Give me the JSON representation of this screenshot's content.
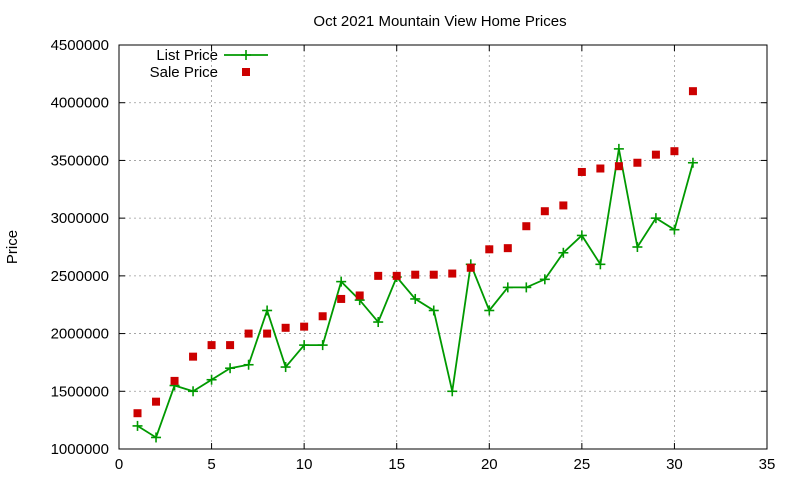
{
  "chart_data": {
    "type": "line",
    "title": "Oct 2021 Mountain View Home Prices",
    "ylabel": "Price",
    "xlabel": "",
    "xlim": [
      0,
      35
    ],
    "ylim": [
      1000000,
      4500000
    ],
    "x_ticks": [
      0,
      5,
      10,
      15,
      20,
      25,
      30,
      35
    ],
    "y_ticks": [
      1000000,
      1500000,
      2000000,
      2500000,
      3000000,
      3500000,
      4000000,
      4500000
    ],
    "grid": true,
    "legend_position": "top-left",
    "x": [
      1,
      2,
      3,
      4,
      5,
      6,
      7,
      8,
      9,
      10,
      11,
      12,
      13,
      14,
      15,
      16,
      17,
      18,
      19,
      20,
      21,
      22,
      23,
      24,
      25,
      26,
      27,
      28,
      29,
      30,
      31
    ],
    "series": [
      {
        "name": "List Price",
        "style": "linespoints",
        "color": "#009900",
        "values": [
          1200000,
          1100000,
          1550000,
          1500000,
          1600000,
          1700000,
          1730000,
          2200000,
          1710000,
          1900000,
          1900000,
          2450000,
          2290000,
          2100000,
          2490000,
          2300000,
          2200000,
          1500000,
          2600000,
          2200000,
          2400000,
          2400000,
          2470000,
          2700000,
          2850000,
          2600000,
          3600000,
          2750000,
          3000000,
          2900000,
          3480000
        ]
      },
      {
        "name": "Sale Price",
        "style": "points",
        "color": "#cc0000",
        "values": [
          1310000,
          1410000,
          1590000,
          1800000,
          1900000,
          1900000,
          2000000,
          2000000,
          2050000,
          2060000,
          2150000,
          2300000,
          2330000,
          2500000,
          2500000,
          2510000,
          2510000,
          2520000,
          2570000,
          2730000,
          2740000,
          2930000,
          3060000,
          3110000,
          3400000,
          3430000,
          3450000,
          3480000,
          3550000,
          3580000,
          4100000
        ]
      }
    ]
  }
}
